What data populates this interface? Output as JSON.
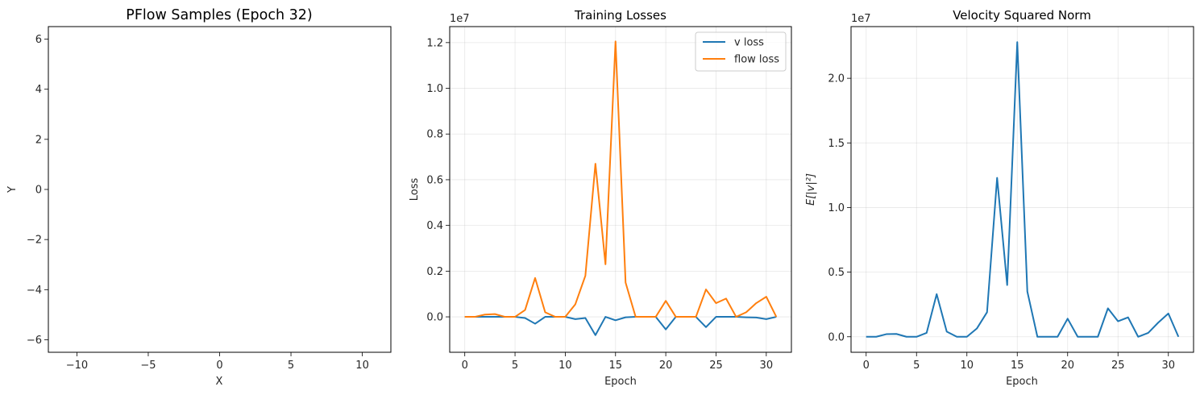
{
  "chart_data": [
    {
      "type": "scatter",
      "title": "PFlow Samples (Epoch 32)",
      "xlabel": "X",
      "ylabel": "Y",
      "xlim": [
        -12,
        12
      ],
      "ylim": [
        -6.5,
        6.5
      ],
      "xticks": [
        -10,
        -5,
        0,
        5,
        10
      ],
      "xtick_labels": [
        "−10",
        "−5",
        "0",
        "5",
        "10"
      ],
      "yticks": [
        -6,
        -4,
        -2,
        0,
        2,
        4,
        6
      ],
      "ytick_labels": [
        "−6",
        "−4",
        "−2",
        "0",
        "2",
        "4",
        "6"
      ],
      "grid": false,
      "series": []
    },
    {
      "type": "line",
      "title": "Training Losses",
      "xlabel": "Epoch",
      "ylabel": "Loss",
      "offset_text": "1e7",
      "xlim": [
        -1.5,
        32.5
      ],
      "ylim": [
        -0.155,
        1.27
      ],
      "xticks": [
        0,
        5,
        10,
        15,
        20,
        25,
        30
      ],
      "xtick_labels": [
        "0",
        "5",
        "10",
        "15",
        "20",
        "25",
        "30"
      ],
      "yticks": [
        0.0,
        0.2,
        0.4,
        0.6,
        0.8,
        1.0,
        1.2
      ],
      "ytick_labels": [
        "0.0",
        "0.2",
        "0.4",
        "0.6",
        "0.8",
        "1.0",
        "1.2"
      ],
      "grid": true,
      "legend": "top-right",
      "x": [
        0,
        1,
        2,
        3,
        4,
        5,
        6,
        7,
        8,
        9,
        10,
        11,
        12,
        13,
        14,
        15,
        16,
        17,
        18,
        19,
        20,
        21,
        22,
        23,
        24,
        25,
        26,
        27,
        28,
        29,
        30,
        31
      ],
      "series": [
        {
          "name": "v loss",
          "color": "#1f77b4",
          "values": [
            0.0,
            0.0,
            0.0,
            0.0,
            0.0,
            0.0,
            -0.005,
            -0.03,
            0.0,
            0.0,
            0.0,
            -0.01,
            -0.005,
            -0.08,
            0.0,
            -0.015,
            -0.002,
            0.0,
            0.0,
            0.0,
            -0.055,
            0.0,
            0.0,
            0.0,
            -0.045,
            0.0,
            0.0,
            0.0,
            -0.002,
            -0.003,
            -0.01,
            0.0
          ]
        },
        {
          "name": "flow loss",
          "color": "#ff7f0e",
          "values": [
            0.0,
            0.0,
            0.01,
            0.012,
            0.0,
            0.0,
            0.03,
            0.17,
            0.02,
            0.0,
            0.0,
            0.055,
            0.18,
            0.67,
            0.23,
            1.205,
            0.15,
            0.0,
            0.0,
            0.0,
            0.07,
            0.0,
            0.0,
            0.0,
            0.12,
            0.06,
            0.08,
            0.0,
            0.02,
            0.06,
            0.088,
            0.0
          ]
        }
      ]
    },
    {
      "type": "line",
      "title": "Velocity Squared Norm",
      "xlabel": "Epoch",
      "ylabel": "E[|v|²]",
      "offset_text": "1e7",
      "xlim": [
        -1.5,
        32.5
      ],
      "ylim": [
        -0.12,
        2.4
      ],
      "xticks": [
        0,
        5,
        10,
        15,
        20,
        25,
        30
      ],
      "xtick_labels": [
        "0",
        "5",
        "10",
        "15",
        "20",
        "25",
        "30"
      ],
      "yticks": [
        0.0,
        0.5,
        1.0,
        1.5,
        2.0
      ],
      "ytick_labels": [
        "0.0",
        "0.5",
        "1.0",
        "1.5",
        "2.0"
      ],
      "grid": true,
      "x": [
        0,
        1,
        2,
        3,
        4,
        5,
        6,
        7,
        8,
        9,
        10,
        11,
        12,
        13,
        14,
        15,
        16,
        17,
        18,
        19,
        20,
        21,
        22,
        23,
        24,
        25,
        26,
        27,
        28,
        29,
        30,
        31
      ],
      "series": [
        {
          "color": "#1f77b4",
          "values": [
            0.0,
            0.0,
            0.02,
            0.022,
            0.0,
            0.0,
            0.03,
            0.33,
            0.04,
            0.0,
            0.0,
            0.065,
            0.19,
            1.23,
            0.4,
            2.28,
            0.35,
            0.0,
            0.0,
            0.0,
            0.14,
            0.0,
            0.0,
            0.0,
            0.22,
            0.12,
            0.15,
            0.0,
            0.03,
            0.11,
            0.18,
            0.0
          ]
        }
      ]
    }
  ]
}
